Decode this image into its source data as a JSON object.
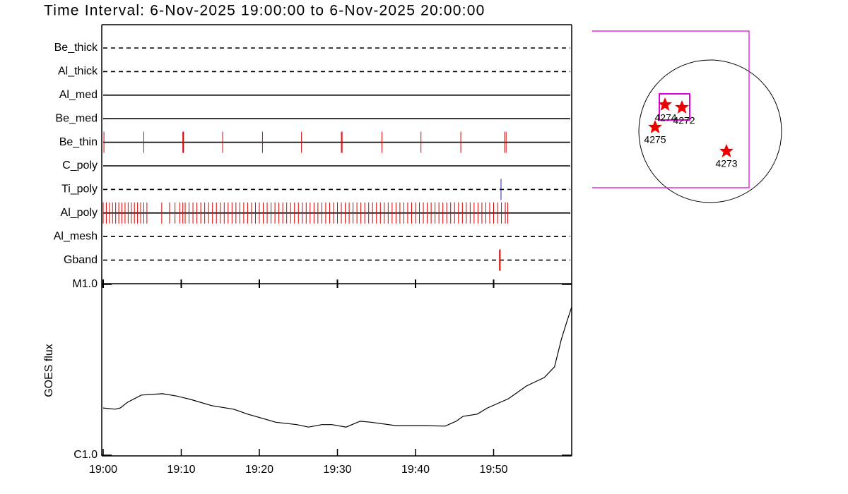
{
  "title": "Time Interval:  6-Nov-2025 19:00:00 to  6-Nov-2025 20:00:00",
  "xaxis": {
    "xlim": [
      0,
      60
    ],
    "xticks": [
      {
        "value": 0,
        "label": "19:00"
      },
      {
        "value": 10,
        "label": "19:10"
      },
      {
        "value": 20,
        "label": "19:20"
      },
      {
        "value": 30,
        "label": "19:30"
      },
      {
        "value": 40,
        "label": "19:40"
      },
      {
        "value": 50,
        "label": "19:50"
      }
    ]
  },
  "filters": [
    {
      "name": "Be_thick",
      "dashed": true,
      "color": "#dd0000",
      "times": []
    },
    {
      "name": "Al_thick",
      "dashed": true,
      "color": "#dd0000",
      "times": []
    },
    {
      "name": "Al_med",
      "dashed": false,
      "color": "#dd0000",
      "times": []
    },
    {
      "name": "Be_med",
      "dashed": false,
      "color": "#dd0000",
      "times": []
    },
    {
      "name": "Be_thin",
      "dashed": false,
      "color": "#dd0000",
      "times": [
        0.1,
        5.2,
        10.2,
        10.25,
        10.3,
        15.3,
        20.4,
        25.4,
        30.5,
        30.6,
        35.7,
        40.7,
        45.8,
        51.4,
        51.6
      ]
    },
    {
      "name": "C_poly",
      "dashed": false,
      "color": "#dd0000",
      "times": []
    },
    {
      "name": "Ti_poly",
      "dashed": true,
      "color": "#2222aa",
      "times": [
        50.95
      ]
    },
    {
      "name": "Al_poly",
      "dashed": false,
      "color": "#dd0000",
      "times": [
        0,
        0.4,
        0.8,
        1.2,
        1.6,
        2.0,
        2.4,
        2.8,
        3.2,
        3.6,
        4.0,
        4.4,
        4.8,
        5.2,
        5.6,
        7.5,
        8.5,
        9.2,
        9.8,
        10.2,
        10.5,
        11,
        11.5,
        12,
        12.5,
        13,
        13.5,
        14,
        14.5,
        15,
        15.5,
        16,
        16.5,
        17,
        17.5,
        18,
        18.5,
        19,
        19.5,
        20,
        20.5,
        21,
        21.5,
        22,
        22.5,
        23,
        23.5,
        24,
        24.5,
        25,
        25.5,
        26,
        26.5,
        27,
        27.5,
        28,
        28.5,
        29,
        29.5,
        30,
        30.5,
        31,
        31.5,
        32,
        32.5,
        33,
        33.5,
        34,
        34.5,
        35,
        35.5,
        36,
        36.5,
        37,
        37.5,
        38,
        38.5,
        39,
        39.5,
        40,
        40.5,
        41,
        41.5,
        42,
        42.5,
        43,
        43.5,
        44,
        44.5,
        45,
        45.5,
        46,
        46.5,
        47,
        47.5,
        48,
        48.5,
        49,
        49.5,
        50,
        50.5,
        51,
        51.5,
        51.8
      ]
    },
    {
      "name": "Al_mesh",
      "dashed": true,
      "color": "#dd0000",
      "times": []
    },
    {
      "name": "Gband",
      "dashed": true,
      "color": "#dd0000",
      "times": [
        50.75,
        50.8,
        50.85
      ]
    }
  ],
  "goes": {
    "ylabel": "GOES flux",
    "log": true,
    "color": "#000000",
    "ylim": [
      1e-06,
      1e-05
    ],
    "yticks": [
      {
        "value": 1e-06,
        "label": "C1.0"
      },
      {
        "value": 1e-05,
        "label": "M1.0"
      }
    ],
    "x": [
      0,
      1.5,
      2.2,
      3.1,
      4.9,
      7.6,
      9.4,
      11.2,
      13.9,
      16.7,
      18.5,
      22.1,
      24.8,
      26.3,
      28.0,
      29.3,
      31.1,
      32.9,
      34.3,
      37.5,
      41.1,
      43.8,
      45.2,
      46.1,
      47.9,
      49.2,
      51.9,
      54.2,
      56.5,
      57.8,
      58.7,
      59.4,
      60
    ],
    "values": [
      1.89e-06,
      1.86e-06,
      1.89e-06,
      2.04e-06,
      2.25e-06,
      2.29e-06,
      2.22e-06,
      2.12e-06,
      1.95e-06,
      1.86e-06,
      1.74e-06,
      1.56e-06,
      1.51e-06,
      1.46e-06,
      1.51e-06,
      1.51e-06,
      1.46e-06,
      1.58e-06,
      1.56e-06,
      1.49e-06,
      1.49e-06,
      1.48e-06,
      1.58e-06,
      1.69e-06,
      1.74e-06,
      1.89e-06,
      2.14e-06,
      2.54e-06,
      2.85e-06,
      3.29e-06,
      4.81e-06,
      6.1e-06,
      7.38e-06
    ]
  },
  "map": {
    "regions": [
      "4274",
      "4272",
      "4275",
      "4273"
    ]
  }
}
